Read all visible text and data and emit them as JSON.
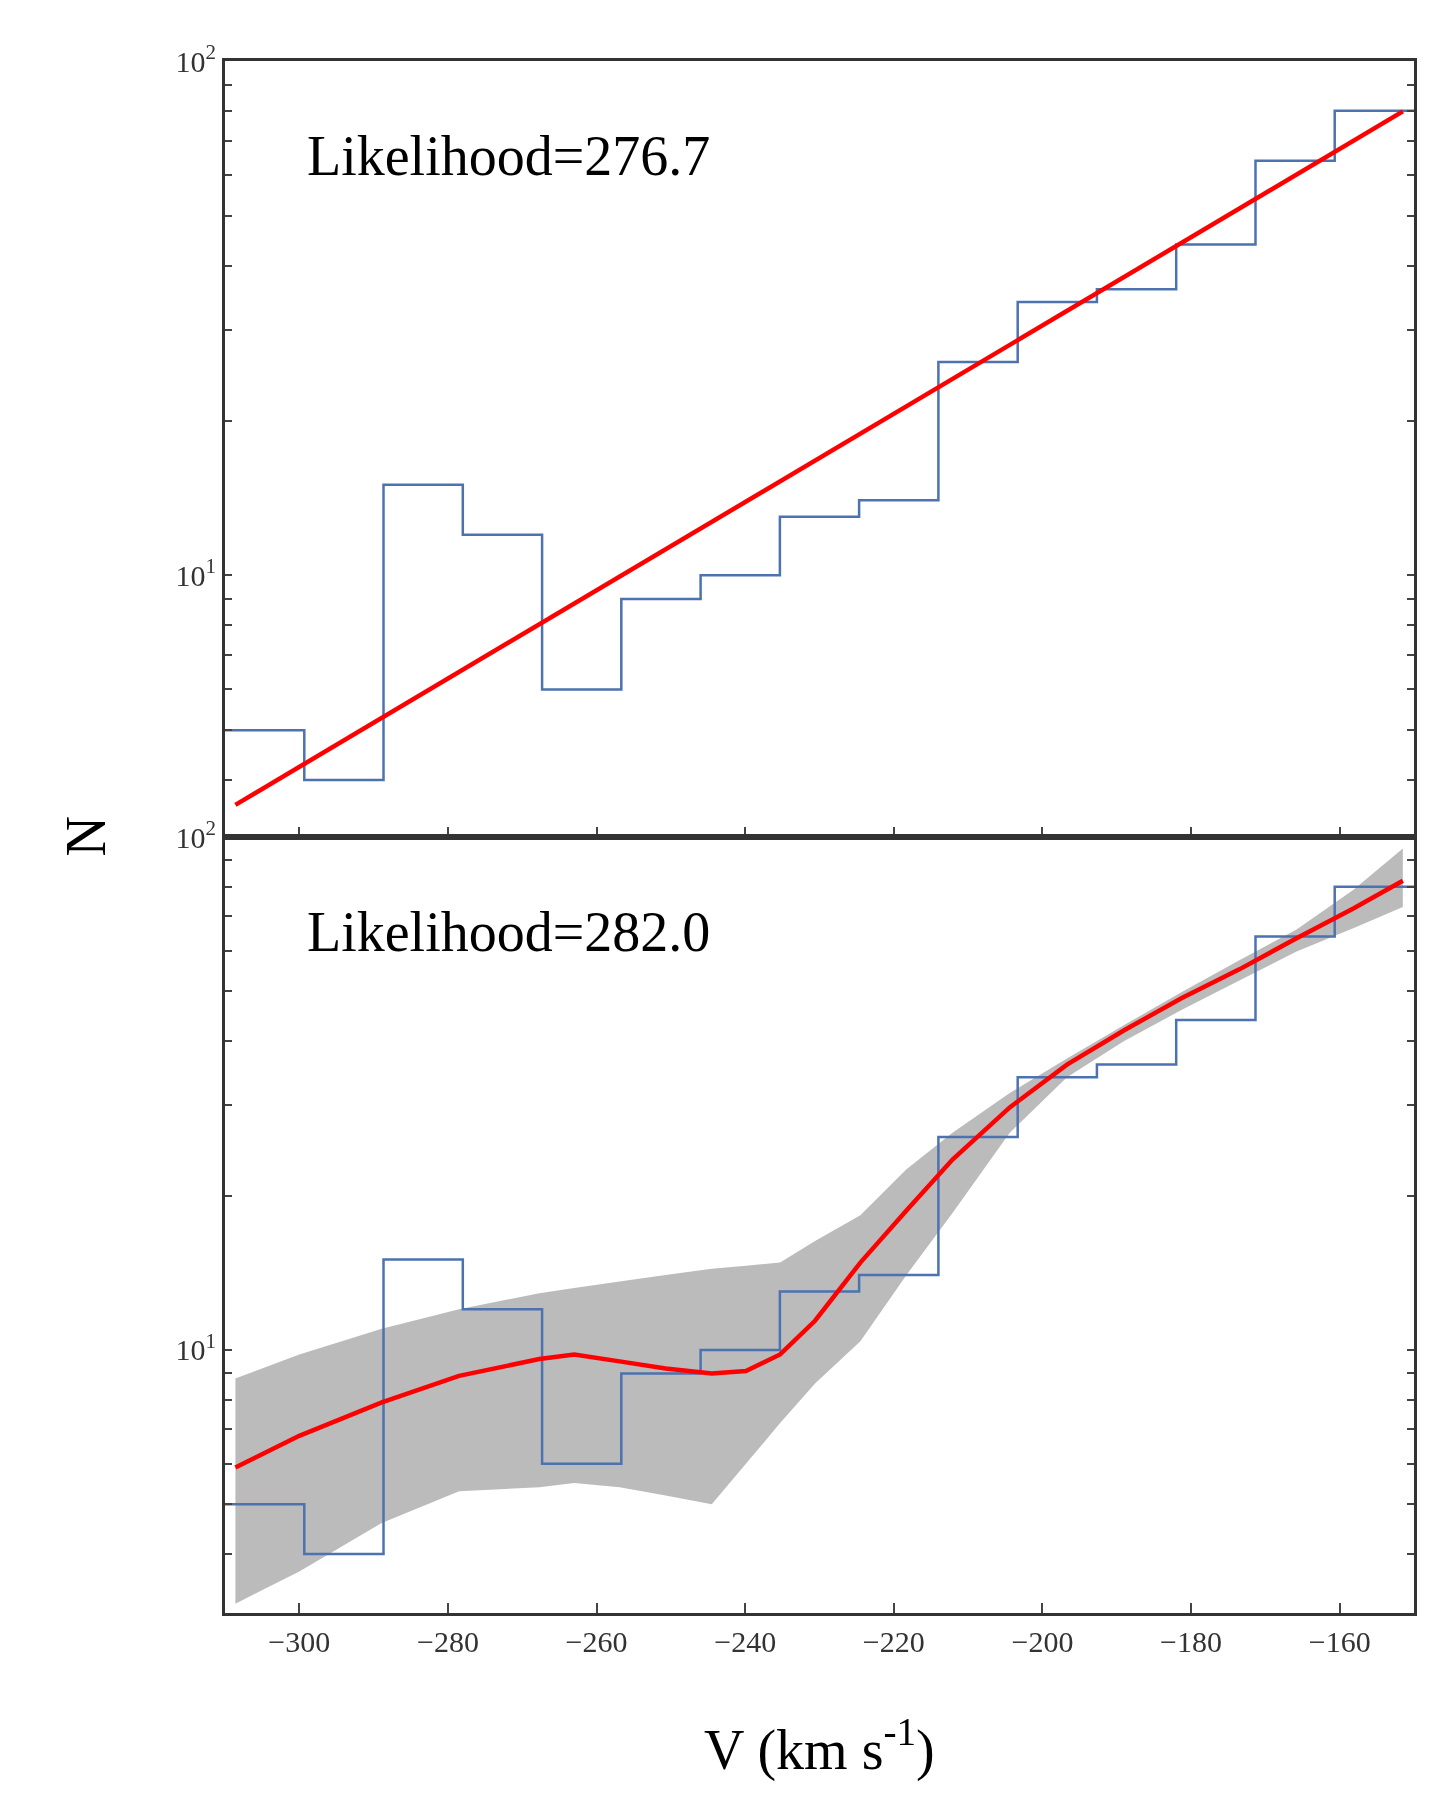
{
  "chart_data": [
    {
      "type": "histogram",
      "ylabel": "N",
      "annotations": [
        "Likelihood=276.7"
      ],
      "log": true,
      "tick_labels": "y",
      "bins": [
        -310,
        -299.33,
        -288.67,
        -278,
        -267.33,
        -256.67,
        -246,
        -235.33,
        -224.67,
        -214,
        -203.33,
        -192.67,
        -182,
        -171.33,
        -160.67,
        -150
      ],
      "xlim": [
        -310,
        -150
      ],
      "xticks": [
        -300,
        -280,
        -260,
        -240,
        -220,
        -200,
        -180,
        -160
      ],
      "ylim": [
        3.1,
        100
      ],
      "yticks": [
        {
          "value": 100,
          "label": "10$^{2}$"
        },
        {
          "value": 90,
          "label": null
        },
        {
          "value": 80,
          "label": null
        },
        {
          "value": 70,
          "label": null
        },
        {
          "value": 60,
          "label": null
        },
        {
          "value": 50,
          "label": null
        },
        {
          "value": 40,
          "label": null
        },
        {
          "value": 30,
          "label": null
        },
        {
          "value": 20,
          "label": null
        },
        {
          "value": 10,
          "label": "10$^{1}$"
        },
        {
          "value": 9,
          "label": null
        },
        {
          "value": 8,
          "label": null
        },
        {
          "value": 7,
          "label": null
        },
        {
          "value": 6,
          "label": null
        },
        {
          "value": 5,
          "label": null
        },
        {
          "value": 4,
          "label": null
        }
      ],
      "series": [
        {
          "type": "histogram",
          "color": "#4c72b0",
          "values": [
            5,
            4,
            15,
            12,
            6,
            9,
            10,
            13,
            14,
            26,
            34,
            36,
            44,
            64,
            80
          ]
        },
        {
          "type": "line",
          "color": "#ff0000",
          "x": [
            -308.6,
            -151.5
          ],
          "values": [
            3.58,
            79.8
          ]
        }
      ]
    },
    {
      "type": "histogram",
      "xlabel": "V (km s$^{-1}$)",
      "annotations": [
        "Likelihood=282.0"
      ],
      "log": true,
      "bins": [
        -310,
        -299.33,
        -288.67,
        -278,
        -267.33,
        -256.67,
        -246,
        -235.33,
        -224.67,
        -214,
        -203.33,
        -192.67,
        -182,
        -171.33,
        -160.67,
        -150
      ],
      "xlim": [
        -310,
        -150
      ],
      "xticks": [
        {
          "value": -300,
          "label": "−300"
        },
        {
          "value": -280,
          "label": "−280"
        },
        {
          "value": -260,
          "label": "−260"
        },
        {
          "value": -240,
          "label": "−240"
        },
        {
          "value": -220,
          "label": "−220"
        },
        {
          "value": -200,
          "label": "−200"
        },
        {
          "value": -180,
          "label": "−180"
        },
        {
          "value": -160,
          "label": "−160"
        }
      ],
      "ylim": [
        3.07,
        100
      ],
      "yticks": [
        {
          "value": 100,
          "label": "10$^{2}$"
        },
        {
          "value": 90,
          "label": null
        },
        {
          "value": 80,
          "label": null
        },
        {
          "value": 70,
          "label": null
        },
        {
          "value": 60,
          "label": null
        },
        {
          "value": 50,
          "label": null
        },
        {
          "value": 40,
          "label": null
        },
        {
          "value": 30,
          "label": null
        },
        {
          "value": 20,
          "label": null
        },
        {
          "value": 10,
          "label": "10$^{1}$"
        },
        {
          "value": 9,
          "label": null
        },
        {
          "value": 8,
          "label": null
        },
        {
          "value": 7,
          "label": null
        },
        {
          "value": 6,
          "label": null
        },
        {
          "value": 5,
          "label": null
        },
        {
          "value": 4,
          "label": null
        }
      ],
      "series": [
        {
          "type": "histogram",
          "color": "#4c72b0",
          "values": [
            5,
            4,
            15,
            12,
            6,
            9,
            10,
            13,
            14,
            26,
            34,
            36,
            44,
            64,
            80
          ]
        },
        {
          "type": "line",
          "color": "#ff0000",
          "x": [
            -308.6,
            -300,
            -288.9,
            -278.5,
            -267.7,
            -263,
            -256.9,
            -250.7,
            -244.5,
            -239.9,
            -235.3,
            -230.6,
            -224.5,
            -218.3,
            -212.1,
            -204.4,
            -196.7,
            -189,
            -181.3,
            -173.5,
            -165.8,
            -158.1,
            -151.5
          ],
          "values": [
            5.9,
            6.8,
            7.9,
            8.9,
            9.6,
            9.8,
            9.5,
            9.2,
            9.0,
            9.1,
            9.8,
            11.4,
            14.8,
            18.7,
            23.5,
            29.7,
            36.0,
            42.0,
            48.5,
            55.2,
            63.5,
            72.6,
            82.2
          ],
          "lower": [
            3.2,
            3.7,
            4.6,
            5.3,
            5.4,
            5.5,
            5.4,
            5.2,
            5.0,
            6.0,
            7.2,
            8.6,
            10.4,
            14.0,
            18.5,
            26.5,
            34.0,
            40.0,
            46.0,
            52.5,
            59.8,
            66.5,
            73
          ],
          "upper": [
            8.8,
            9.8,
            11.0,
            12.0,
            12.9,
            13.2,
            13.6,
            14.0,
            14.4,
            14.6,
            14.8,
            16.3,
            18.3,
            22.5,
            26.5,
            31.7,
            37.0,
            43.0,
            49.8,
            57.5,
            66.0,
            79,
            95
          ]
        }
      ]
    }
  ]
}
